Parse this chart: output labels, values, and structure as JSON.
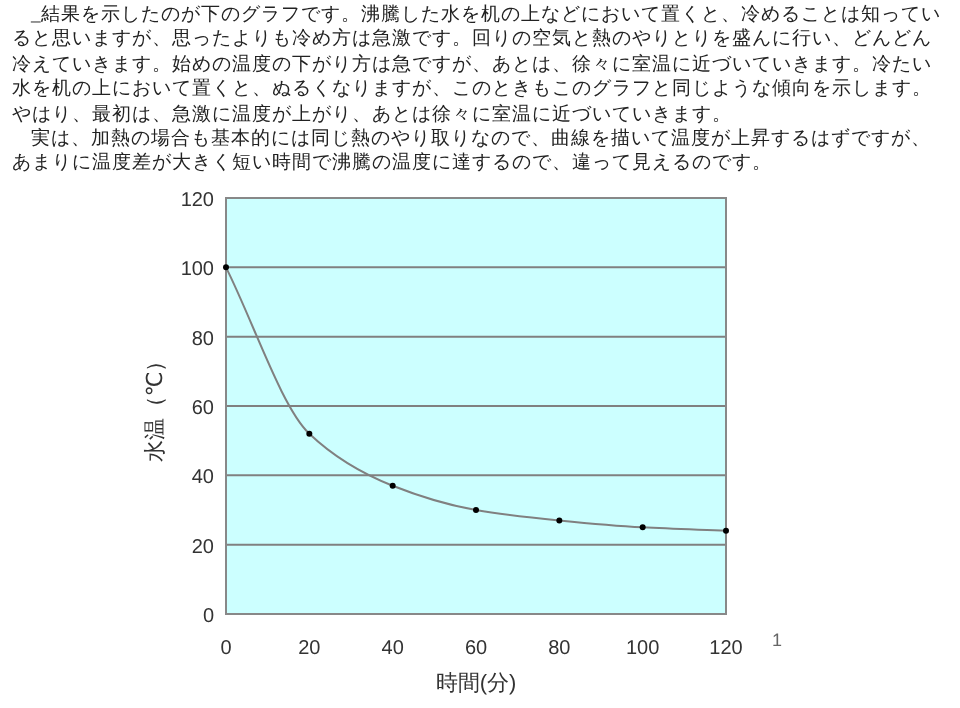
{
  "chart_data": {
    "type": "line",
    "xlabel": "時間(分)",
    "ylabel": "水温（℃）",
    "annotations": [
      "_結果を示したのが下のグラフです。沸騰した水を机の上などにおいて置くと、冷めることは知っていると思いますが、思ったよりも冷め方は急激です。回りの空気と熱のやりとりを盛んに行い、どんどん冷えていきます。始めの温度の下がり方は急ですが、あとは、徐々に室温に近づいていきます。冷たい水を机の上において置くと、ぬるくなりますが、このときもこのグラフと同じような傾向を示します。やはり、最初は、急激に温度が上がり、あとは徐々に室温に近づいていきます。",
      "実は、加熱の場合も基本的には同じ熱のやり取りなので、曲線を描いて温度が上昇するはずですが、あまりに温度差が大きく短い時間で沸騰の温度に達するので、違って見えるのです。",
      "1"
    ],
    "x": [
      0,
      20,
      40,
      60,
      80,
      100,
      120
    ],
    "series": [
      {
        "color": "#808080",
        "values": [
          100,
          52,
          37,
          30,
          27,
          25,
          24
        ]
      }
    ],
    "xlim": [
      0,
      120
    ],
    "xticks": [
      0,
      20,
      40,
      60,
      80,
      100,
      120
    ],
    "ylim": [
      0,
      120
    ],
    "yticks": [
      0,
      20,
      40,
      60,
      80,
      100,
      120
    ],
    "grid": "y",
    "marker": "circle",
    "line_style": "solid"
  }
}
